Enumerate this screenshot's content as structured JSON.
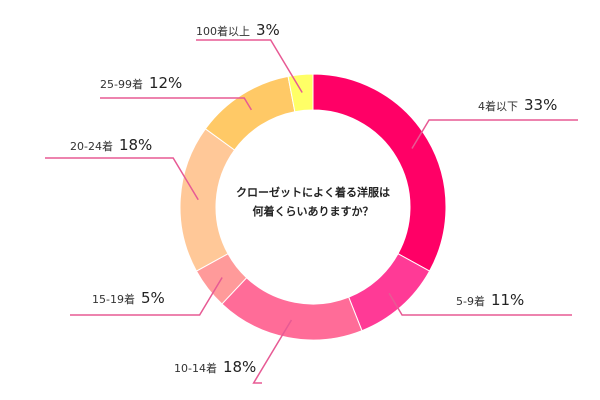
{
  "chart_data": {
    "type": "pie",
    "title": "",
    "center_text": [
      "クローゼットによく着る洋服は",
      "何着くらいありますか？"
    ],
    "categories": [
      "4着以下",
      "5-9着",
      "10-14着",
      "15-19着",
      "20-24着",
      "25-99着",
      "100着以上"
    ],
    "values": [
      33,
      11,
      18,
      5,
      18,
      12,
      3
    ],
    "value_labels": [
      "33%",
      "11%",
      "18%",
      "5%",
      "18%",
      "12%",
      "3%"
    ],
    "colors": [
      "#ff0066",
      "#ff3a96",
      "#ff6c98",
      "#ff9a9a",
      "#ffc898",
      "#ffc966",
      "#ffff66"
    ],
    "leader_color": "#e75a94",
    "legend": "none",
    "grid": false
  }
}
